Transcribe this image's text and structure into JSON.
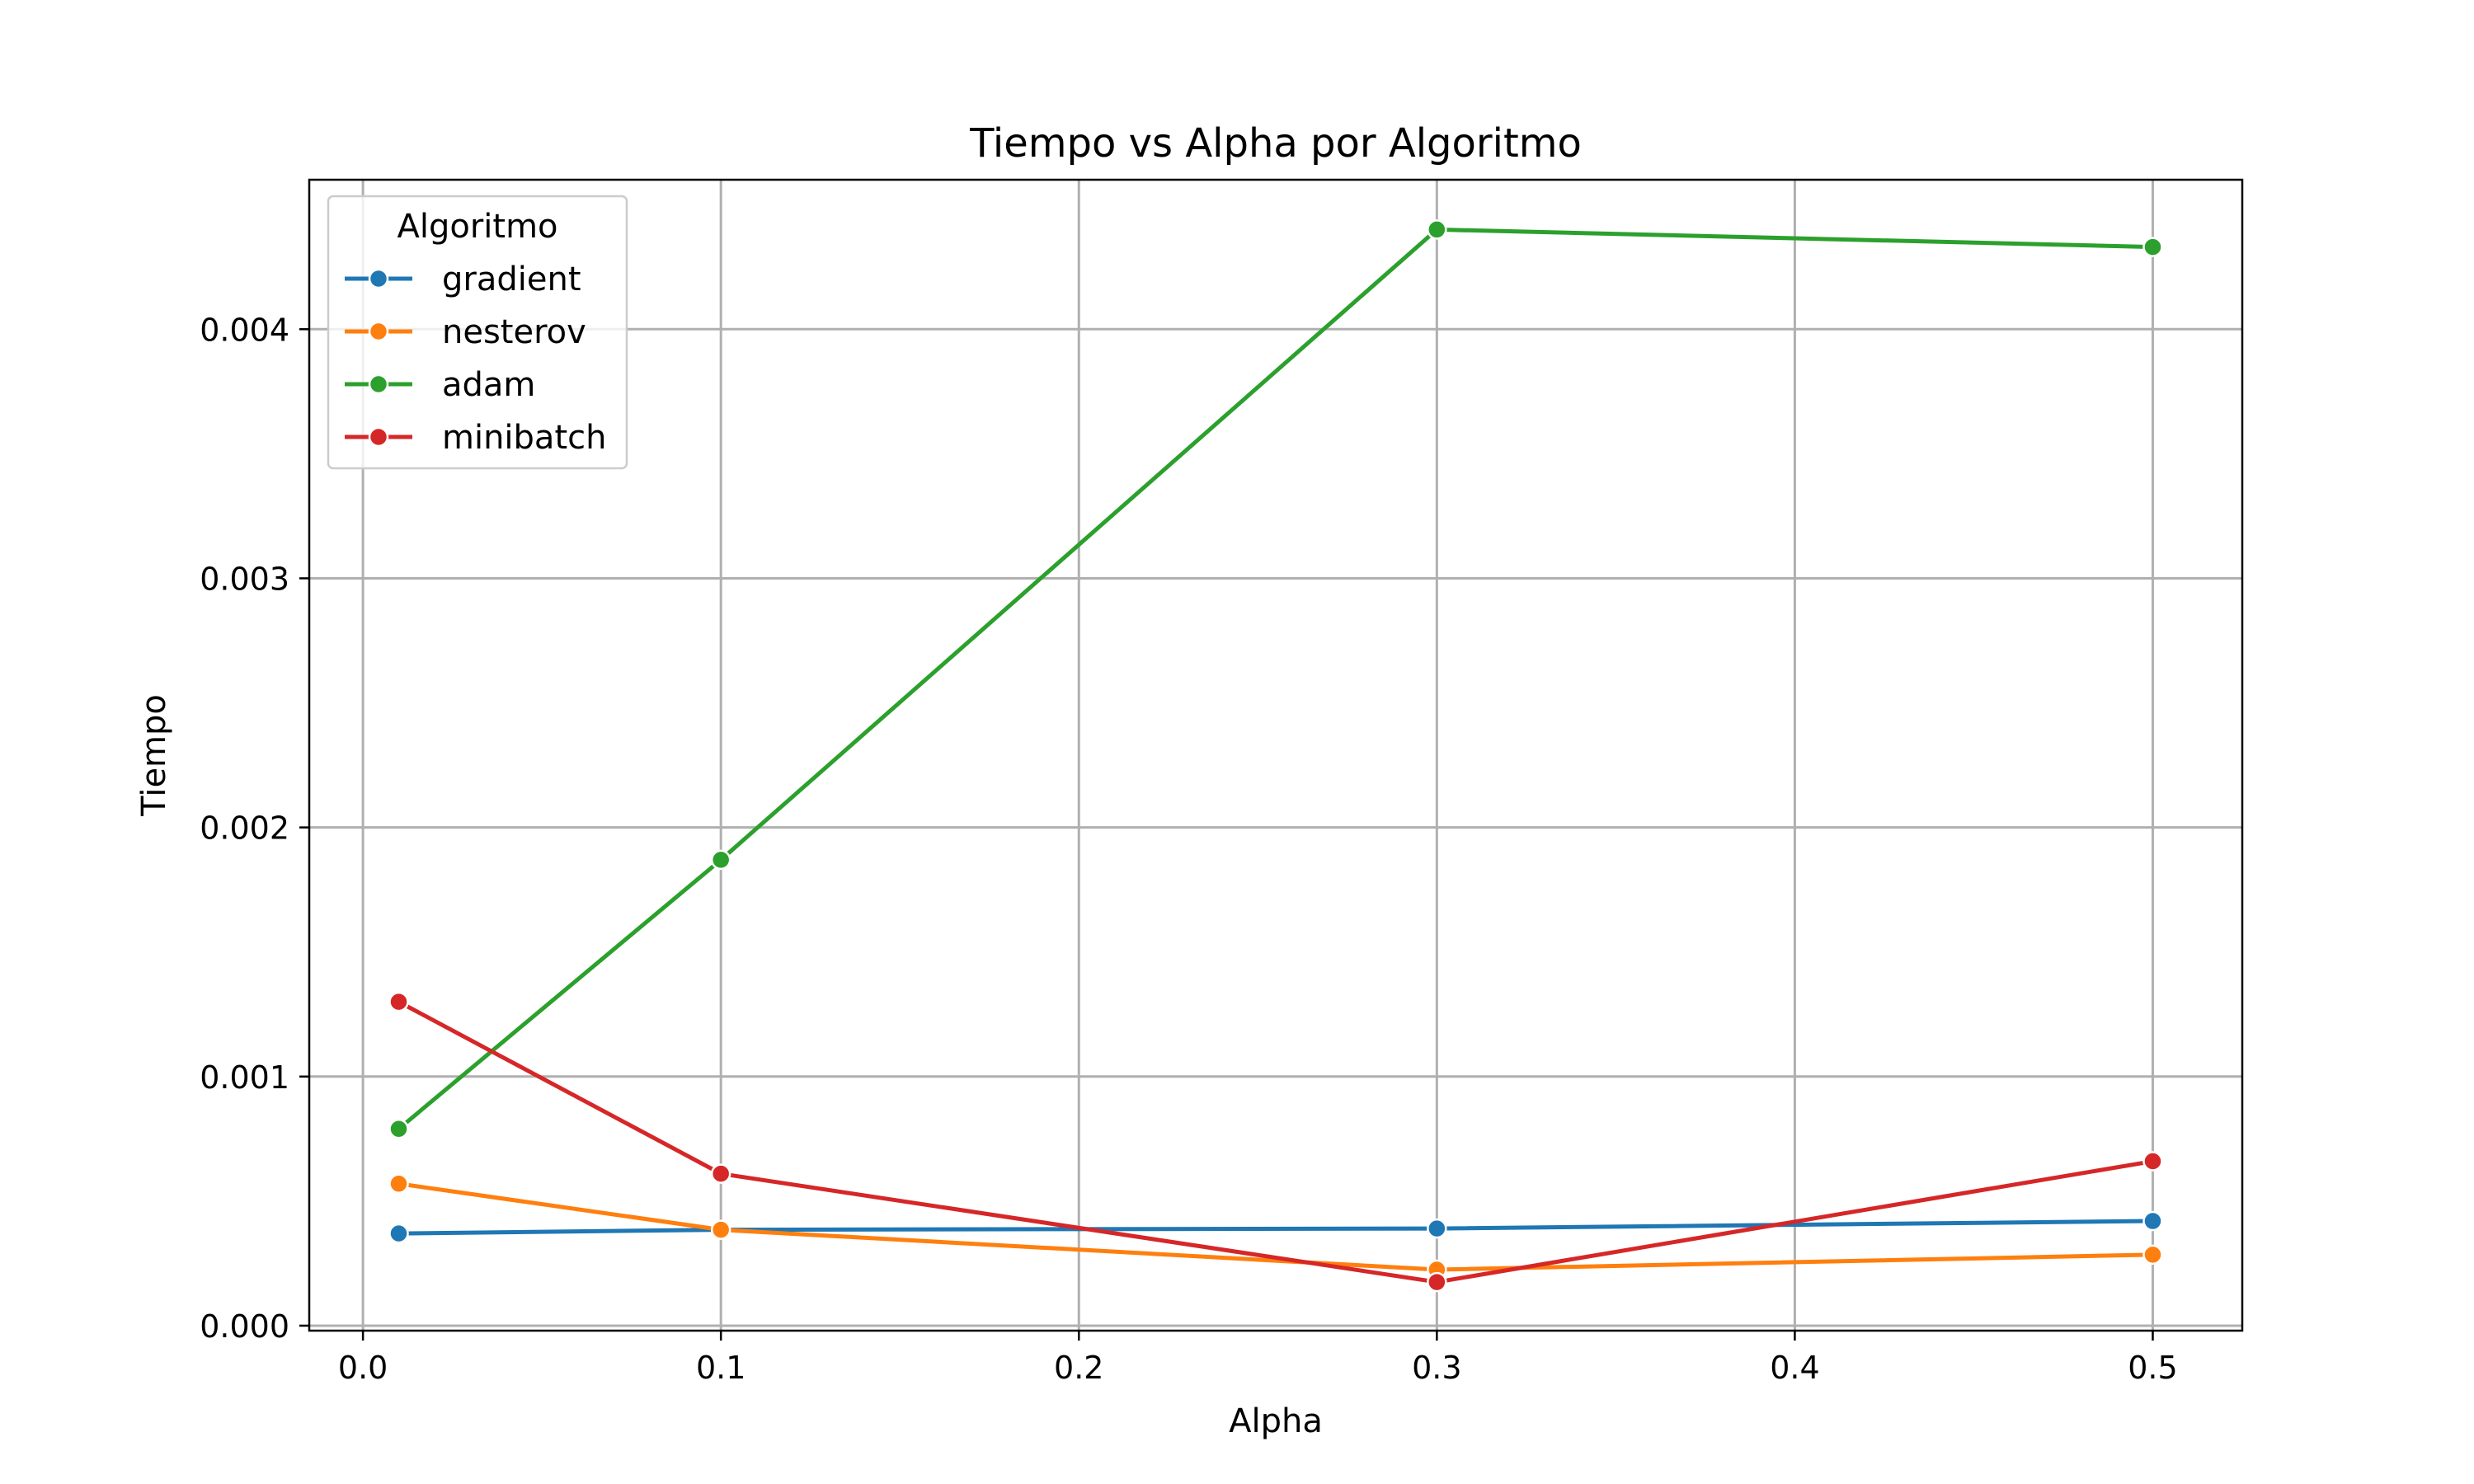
{
  "chart_data": {
    "type": "line",
    "title": "Tiempo vs Alpha por Algoritmo",
    "xlabel": "Alpha",
    "ylabel": "Tiempo",
    "xlim": [
      -0.015,
      0.525
    ],
    "ylim": [
      -2e-05,
      0.0046
    ],
    "xticks": [
      0.0,
      0.1,
      0.2,
      0.3,
      0.4,
      0.5
    ],
    "xtick_labels": [
      "0.0",
      "0.1",
      "0.2",
      "0.3",
      "0.4",
      "0.5"
    ],
    "yticks": [
      0.0,
      0.001,
      0.002,
      0.003,
      0.004
    ],
    "ytick_labels": [
      "0.000",
      "0.001",
      "0.002",
      "0.003",
      "0.004"
    ],
    "grid": true,
    "legend": {
      "title": "Algoritmo",
      "position": "top-left"
    },
    "x": [
      0.01,
      0.1,
      0.3,
      0.5
    ],
    "series": [
      {
        "name": "gradient",
        "color": "#1f77b4",
        "values": [
          0.00037,
          0.000385,
          0.00039,
          0.00042
        ]
      },
      {
        "name": "nesterov",
        "color": "#ff7f0e",
        "values": [
          0.00057,
          0.000385,
          0.000225,
          0.000285
        ]
      },
      {
        "name": "adam",
        "color": "#2ca02c",
        "values": [
          0.00079,
          0.00187,
          0.0044,
          0.00433
        ]
      },
      {
        "name": "minibatch",
        "color": "#d62728",
        "values": [
          0.0013,
          0.00061,
          0.000175,
          0.00066
        ]
      }
    ]
  }
}
